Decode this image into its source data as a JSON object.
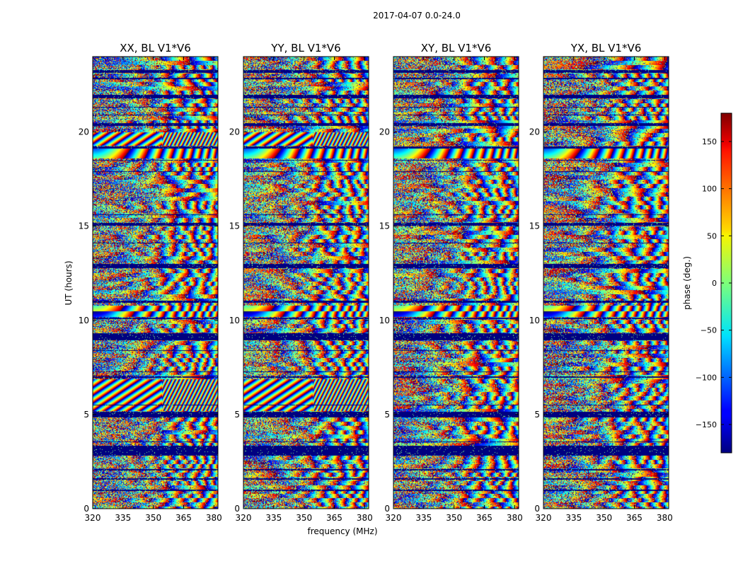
{
  "chart_data": {
    "type": "heatmap",
    "suptitle": "2017-04-07 0.0-24.0",
    "xlabel": "frequency (MHz)",
    "ylabel": "UT (hours)",
    "xlim": [
      320,
      382
    ],
    "ylim": [
      0,
      24
    ],
    "xticks": [
      320,
      335,
      350,
      365,
      380
    ],
    "yticks": [
      0,
      5,
      10,
      15,
      20
    ],
    "panels": [
      {
        "title": "XX, BL V1*V6"
      },
      {
        "title": "YY, BL V1*V6"
      },
      {
        "title": "XY, BL V1*V6"
      },
      {
        "title": "YX, BL V1*V6"
      }
    ],
    "colorbar": {
      "label": "phase (deg.)",
      "colormap": "jet",
      "range": [
        -180,
        180
      ],
      "ticks": [
        -150,
        -100,
        -50,
        0,
        50,
        100,
        150
      ],
      "tick_labels": [
        "−150",
        "−100",
        "−50",
        "0",
        "50",
        "100",
        "150"
      ]
    },
    "flagged_intervals_hours": [
      [
        0.95,
        1.05
      ],
      [
        1.55,
        1.62
      ],
      [
        2.05,
        2.12
      ],
      [
        2.85,
        3.35
      ],
      [
        3.55,
        3.6
      ],
      [
        4.85,
        5.15
      ],
      [
        5.5,
        5.55
      ],
      [
        6.95,
        7.05
      ],
      [
        7.25,
        7.3
      ],
      [
        8.4,
        8.45
      ],
      [
        8.95,
        9.35
      ],
      [
        10.1,
        10.15
      ],
      [
        10.95,
        11.05
      ],
      [
        12.8,
        13.0
      ],
      [
        14.1,
        14.15
      ],
      [
        15.05,
        15.2
      ],
      [
        15.6,
        15.65
      ],
      [
        17.9,
        17.95
      ],
      [
        18.5,
        18.55
      ],
      [
        19.15,
        19.25
      ],
      [
        20.35,
        20.5
      ],
      [
        20.9,
        20.95
      ],
      [
        21.3,
        21.35
      ],
      [
        21.8,
        22.0
      ],
      [
        22.8,
        22.9
      ],
      [
        23.15,
        23.3
      ]
    ],
    "fringe_bands_hours": [
      {
        "range": [
          5.2,
          6.9
        ],
        "panels": [
          "XX",
          "YY"
        ],
        "strength": "strong diagonal"
      },
      {
        "range": [
          10.2,
          10.8
        ],
        "panels": [
          "XX",
          "YY",
          "XY",
          "YX"
        ],
        "strength": "wide"
      },
      {
        "range": [
          18.6,
          19.2
        ],
        "panels": [
          "XX",
          "YY",
          "XY",
          "YX"
        ],
        "strength": "wide"
      },
      {
        "range": [
          19.3,
          20.0
        ],
        "panels": [
          "XX",
          "YY"
        ],
        "strength": "diagonal"
      }
    ]
  }
}
